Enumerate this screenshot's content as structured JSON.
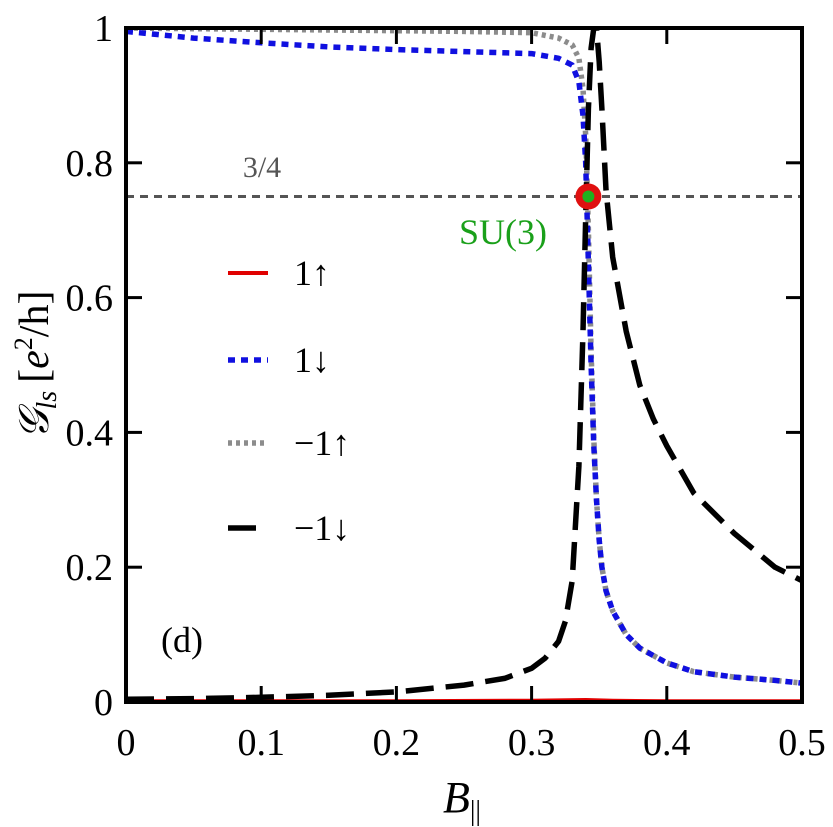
{
  "chart_data": {
    "type": "line",
    "panel_label": "(d)",
    "xlabel_main": "B",
    "xlabel_sub": "||",
    "ylabel_script": "𝒢",
    "ylabel_sub": "ls",
    "ylabel_unit_open": "[",
    "ylabel_unit_e": "e",
    "ylabel_unit_exp": "2",
    "ylabel_unit_rest": "/h]",
    "xlim": [
      0,
      0.5
    ],
    "ylim": [
      0,
      1
    ],
    "xticks": [
      0,
      0.1,
      0.2,
      0.3,
      0.4,
      0.5
    ],
    "xtick_labels": [
      "0",
      "0.1",
      "0.2",
      "0.3",
      "0.4",
      "0.5"
    ],
    "yticks": [
      0,
      0.2,
      0.4,
      0.6,
      0.8,
      1
    ],
    "ytick_labels": [
      "0",
      "0.2",
      "0.4",
      "0.6",
      "0.8",
      "1"
    ],
    "reference_line": {
      "y": 0.75,
      "label": "3/4",
      "color": "#555555"
    },
    "annotation": {
      "label": "SU(3)",
      "x": 0.342,
      "y": 0.75,
      "outer_color": "#e01010",
      "inner_color": "#1fb01f",
      "text_color": "#1aa01a"
    },
    "series": [
      {
        "name": "1↑",
        "color": "#e00000",
        "dash": "solid",
        "x": [
          0,
          0.1,
          0.2,
          0.3,
          0.34,
          0.36,
          0.4,
          0.5
        ],
        "y": [
          0.001,
          0.001,
          0.001,
          0.002,
          0.003,
          0.002,
          0.001,
          0.001
        ]
      },
      {
        "name": "1↓",
        "color": "#1010e0",
        "dash": "dot-blue",
        "x": [
          0,
          0.05,
          0.1,
          0.15,
          0.2,
          0.25,
          0.3,
          0.32,
          0.33,
          0.335,
          0.338,
          0.34,
          0.342,
          0.344,
          0.346,
          0.348,
          0.35,
          0.352,
          0.355,
          0.36,
          0.37,
          0.38,
          0.4,
          0.42,
          0.45,
          0.48,
          0.5
        ],
        "y": [
          0.995,
          0.985,
          0.978,
          0.972,
          0.968,
          0.965,
          0.962,
          0.955,
          0.945,
          0.92,
          0.87,
          0.8,
          0.65,
          0.5,
          0.38,
          0.3,
          0.24,
          0.2,
          0.165,
          0.135,
          0.1,
          0.08,
          0.058,
          0.045,
          0.037,
          0.032,
          0.028
        ]
      },
      {
        "name": "−1↑",
        "color": "#8c8c8c",
        "dash": "dot-gray",
        "x": [
          0,
          0.05,
          0.1,
          0.15,
          0.2,
          0.25,
          0.3,
          0.32,
          0.33,
          0.335,
          0.338,
          0.34,
          0.342,
          0.344,
          0.346,
          0.348,
          0.35,
          0.352,
          0.355,
          0.36,
          0.37,
          0.38,
          0.4,
          0.42,
          0.45,
          0.48,
          0.5
        ],
        "y": [
          1.0,
          0.999,
          0.998,
          0.997,
          0.996,
          0.995,
          0.993,
          0.985,
          0.975,
          0.955,
          0.91,
          0.84,
          0.7,
          0.52,
          0.39,
          0.3,
          0.24,
          0.2,
          0.165,
          0.135,
          0.1,
          0.08,
          0.058,
          0.045,
          0.037,
          0.032,
          0.028
        ]
      },
      {
        "name": "−1↓",
        "color": "#000000",
        "dash": "dash",
        "x": [
          0,
          0.05,
          0.1,
          0.15,
          0.2,
          0.25,
          0.28,
          0.3,
          0.31,
          0.32,
          0.325,
          0.33,
          0.335,
          0.338,
          0.34,
          0.342,
          0.344,
          0.346,
          0.348,
          0.35,
          0.352,
          0.355,
          0.36,
          0.37,
          0.38,
          0.39,
          0.4,
          0.42,
          0.45,
          0.48,
          0.5
        ],
        "y": [
          0.004,
          0.005,
          0.007,
          0.01,
          0.015,
          0.025,
          0.035,
          0.05,
          0.065,
          0.09,
          0.12,
          0.18,
          0.35,
          0.55,
          0.72,
          0.88,
          0.97,
          1.0,
          1.0,
          0.95,
          0.88,
          0.76,
          0.66,
          0.55,
          0.47,
          0.42,
          0.38,
          0.31,
          0.25,
          0.2,
          0.18
        ]
      }
    ]
  }
}
